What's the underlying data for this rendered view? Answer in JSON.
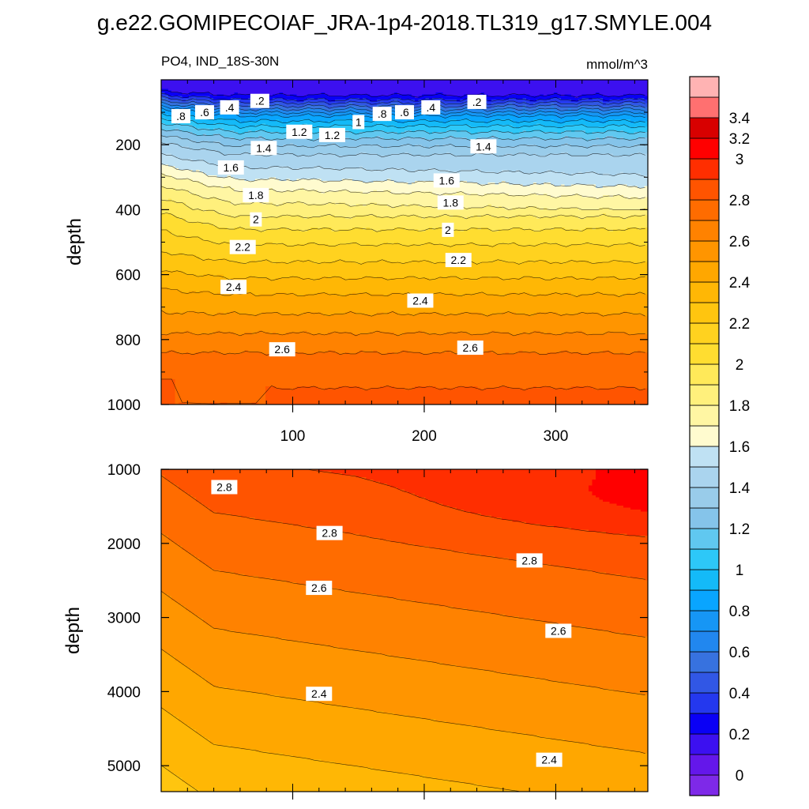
{
  "figure": {
    "title": "g.e22.GOMIPECOIAF_JRA-1p4-2018.TL319_g17.SMYLE.004"
  },
  "colorbar": {
    "levels": [
      -0.2,
      0,
      0.1,
      0.2,
      0.3,
      0.4,
      0.5,
      0.6,
      0.7,
      0.8,
      0.9,
      1.0,
      1.1,
      1.2,
      1.3,
      1.4,
      1.5,
      1.6,
      1.7,
      1.8,
      1.9,
      2.0,
      2.1,
      2.2,
      2.3,
      2.4,
      2.5,
      2.6,
      2.7,
      2.8,
      2.9,
      3.0,
      3.2,
      3.4,
      3.6
    ],
    "colors": [
      "#7e29e8",
      "#6417ea",
      "#3c10f0",
      "#0a00f5",
      "#2438ee",
      "#3157e5",
      "#3772df",
      "#2187ef",
      "#1696f5",
      "#09a5ff",
      "#14baf8",
      "#2dc8f8",
      "#60c8f0",
      "#85c4ea",
      "#99ccea",
      "#aad4ee",
      "#bfe1f3",
      "#fffbcf",
      "#fff6a3",
      "#fff07c",
      "#ffe959",
      "#ffdd30",
      "#ffd21f",
      "#ffc50f",
      "#ffb705",
      "#ffa700",
      "#ff9500",
      "#ff8200",
      "#ff6c00",
      "#ff5400",
      "#ff2e00",
      "#ff0000",
      "#d80000",
      "#ff7070",
      "#ffb3b3"
    ],
    "tick_labels": [
      {
        "value": 0,
        "label": "0"
      },
      {
        "value": 0.2,
        "label": "0.2"
      },
      {
        "value": 0.4,
        "label": "0.4"
      },
      {
        "value": 0.6,
        "label": "0.6"
      },
      {
        "value": 0.8,
        "label": "0.8"
      },
      {
        "value": 1.0,
        "label": "1"
      },
      {
        "value": 1.2,
        "label": "1.2"
      },
      {
        "value": 1.4,
        "label": "1.4"
      },
      {
        "value": 1.6,
        "label": "1.6"
      },
      {
        "value": 1.8,
        "label": "1.8"
      },
      {
        "value": 2.0,
        "label": "2"
      },
      {
        "value": 2.2,
        "label": "2.2"
      },
      {
        "value": 2.4,
        "label": "2.4"
      },
      {
        "value": 2.6,
        "label": "2.6"
      },
      {
        "value": 2.8,
        "label": "2.8"
      },
      {
        "value": 3.0,
        "label": "3"
      },
      {
        "value": 3.2,
        "label": "3.2"
      },
      {
        "value": 3.4,
        "label": "3.4"
      }
    ]
  },
  "chart_data": [
    {
      "type": "heatmap",
      "title": "PO4, IND_18S-30N",
      "units": "mmol/m^3",
      "xlabel": "",
      "ylabel": "depth",
      "xlim": [
        0,
        370
      ],
      "ylim": [
        1000,
        0
      ],
      "xticks": [
        100,
        200,
        300
      ],
      "yticks": [
        200,
        400,
        600,
        800,
        1000
      ],
      "profile": [
        {
          "depth": 5,
          "value": 0.1
        },
        {
          "depth": 40,
          "value": 0.15
        },
        {
          "depth": 60,
          "value": 0.3
        },
        {
          "depth": 80,
          "value": 0.5
        },
        {
          "depth": 110,
          "value": 0.8
        },
        {
          "depth": 150,
          "value": 1.05
        },
        {
          "depth": 190,
          "value": 1.25
        },
        {
          "depth": 230,
          "value": 1.4
        },
        {
          "depth": 290,
          "value": 1.55
        },
        {
          "depth": 340,
          "value": 1.7
        },
        {
          "depth": 400,
          "value": 1.85
        },
        {
          "depth": 480,
          "value": 2.05
        },
        {
          "depth": 560,
          "value": 2.2
        },
        {
          "depth": 660,
          "value": 2.4
        },
        {
          "depth": 780,
          "value": 2.6
        },
        {
          "depth": 870,
          "value": 2.75
        },
        {
          "depth": 1000,
          "value": 2.8
        }
      ],
      "contour_labels": [
        {
          "text": ".2",
          "x": 75,
          "y": 65
        },
        {
          "text": ".2",
          "x": 240,
          "y": 68
        },
        {
          "text": ".4",
          "x": 52,
          "y": 85
        },
        {
          "text": ".4",
          "x": 205,
          "y": 85
        },
        {
          "text": ".6",
          "x": 33,
          "y": 100
        },
        {
          "text": ".6",
          "x": 185,
          "y": 100
        },
        {
          "text": ".8",
          "x": 15,
          "y": 112
        },
        {
          "text": ".8",
          "x": 168,
          "y": 105
        },
        {
          "text": "1",
          "x": 150,
          "y": 130
        },
        {
          "text": "1.2",
          "x": 105,
          "y": 160
        },
        {
          "text": "1.2",
          "x": 130,
          "y": 170
        },
        {
          "text": "1.4",
          "x": 78,
          "y": 210
        },
        {
          "text": "1.4",
          "x": 245,
          "y": 205
        },
        {
          "text": "1.6",
          "x": 53,
          "y": 270
        },
        {
          "text": "1.6",
          "x": 217,
          "y": 310
        },
        {
          "text": "1.8",
          "x": 72,
          "y": 355
        },
        {
          "text": "1.8",
          "x": 220,
          "y": 378
        },
        {
          "text": "2",
          "x": 72,
          "y": 430
        },
        {
          "text": "2",
          "x": 218,
          "y": 462
        },
        {
          "text": "2.2",
          "x": 62,
          "y": 515
        },
        {
          "text": "2.2",
          "x": 226,
          "y": 555
        },
        {
          "text": "2.4",
          "x": 55,
          "y": 638
        },
        {
          "text": "2.4",
          "x": 197,
          "y": 680
        },
        {
          "text": "2.6",
          "x": 92,
          "y": 830
        },
        {
          "text": "2.6",
          "x": 235,
          "y": 825
        }
      ]
    },
    {
      "type": "heatmap",
      "title": "",
      "xlabel": "",
      "ylabel": "depth",
      "xlim": [
        0,
        370
      ],
      "ylim": [
        5350,
        1000
      ],
      "yticks": [
        1000,
        2000,
        3000,
        4000,
        5000
      ],
      "contour_labels": [
        {
          "text": "2.8",
          "x": 48,
          "y": 1240
        },
        {
          "text": "2.8",
          "x": 128,
          "y": 1860
        },
        {
          "text": "2.8",
          "x": 280,
          "y": 2230
        },
        {
          "text": "2.6",
          "x": 120,
          "y": 2600
        },
        {
          "text": "2.6",
          "x": 302,
          "y": 3180
        },
        {
          "text": "2.4",
          "x": 120,
          "y": 4030
        },
        {
          "text": "2.4",
          "x": 295,
          "y": 4920
        }
      ]
    }
  ]
}
